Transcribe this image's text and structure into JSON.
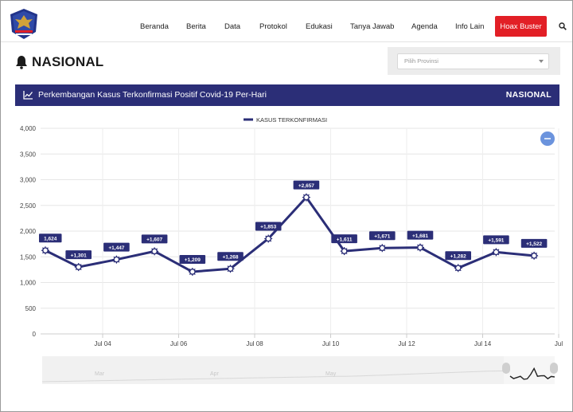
{
  "header": {
    "logo_icon": "covid-task-force-logo-icon",
    "nav": [
      {
        "label": "Beranda"
      },
      {
        "label": "Berita"
      },
      {
        "label": "Data"
      },
      {
        "label": "Protokol"
      },
      {
        "label": "Edukasi"
      },
      {
        "label": "Tanya Jawab"
      },
      {
        "label": "Agenda"
      },
      {
        "label": "Info Lain"
      }
    ],
    "hoax_label": "Hoax Buster",
    "hoax_color": "#e21f26",
    "search_icon": "search-icon"
  },
  "page": {
    "title": "NASIONAL",
    "title_icon": "bell-icon",
    "province_placeholder": "Pilih Provinsi"
  },
  "panel": {
    "title": "Perkembangan Kasus Terkonfirmasi Positif Covid-19 Per-Hari",
    "right_label": "NASIONAL",
    "icon": "line-chart-icon",
    "color": "#2b2e77"
  },
  "chart_data": {
    "type": "line",
    "legend": "KASUS TERKONFIRMASI",
    "series": [
      {
        "name": "KASUS TERKONFIRMASI",
        "x": [
          "Jul 02",
          "Jul 03",
          "Jul 04",
          "Jul 05",
          "Jul 06",
          "Jul 07",
          "Jul 08",
          "Jul 09",
          "Jul 10",
          "Jul 11",
          "Jul 12",
          "Jul 13",
          "Jul 14",
          "Jul 15"
        ],
        "values": [
          1624,
          1301,
          1447,
          1607,
          1209,
          1268,
          1853,
          2657,
          1611,
          1671,
          1681,
          1282,
          1591,
          1522
        ],
        "labels": [
          "1,624",
          "+1,301",
          "+1,447",
          "+1,607",
          "+1,209",
          "+1,268",
          "+1,853",
          "+2,657",
          "+1,611",
          "+1,671",
          "+1,681",
          "+1,282",
          "+1,591",
          "+1,522"
        ],
        "color": "#2b2e77"
      }
    ],
    "xticks": [
      "Jul 04",
      "Jul 06",
      "Jul 08",
      "Jul 10",
      "Jul 12",
      "Jul 14",
      "Jul"
    ],
    "yticks": [
      "0",
      "500",
      "1,000",
      "1,500",
      "2,000",
      "2,500",
      "3,000",
      "3,500",
      "4,000"
    ],
    "ylim": [
      0,
      4000
    ],
    "grid": true,
    "legend_position": "top-center",
    "navigator_labels": [
      "Mar",
      "Apr",
      "May"
    ],
    "zoom_button_icon": "minus-icon",
    "point_marker_icon": "virus-icon"
  }
}
